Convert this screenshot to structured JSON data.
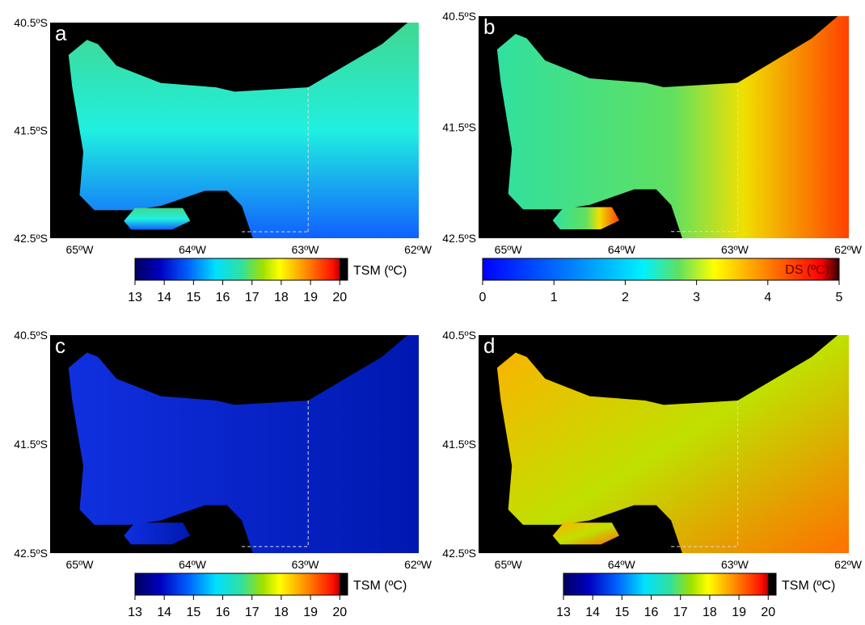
{
  "panels": [
    {
      "letter": "a",
      "lat_labels": [
        "40.5ºS",
        "41.5ºS",
        "42.5ºS"
      ],
      "lon_labels": [
        "65ºW",
        "64ºW",
        "63ºW",
        "62ºW"
      ],
      "colorbar": {
        "label": "TSM (ºC)",
        "ticks": [
          13,
          14,
          15,
          16,
          17,
          18,
          19,
          20
        ]
      }
    },
    {
      "letter": "b",
      "lat_labels": [
        "40.5ºS",
        "41.5ºS",
        "42.5ºS"
      ],
      "lon_labels": [
        "65ºW",
        "64ºW",
        "63ºW",
        "62ºW"
      ],
      "colorbar": {
        "label": "DS (ºC)",
        "ticks": [
          0,
          1,
          2,
          3,
          4,
          5
        ]
      }
    },
    {
      "letter": "c",
      "lat_labels": [
        "40.5ºS",
        "41.5ºS",
        "42.5ºS"
      ],
      "lon_labels": [
        "65ºW",
        "64ºW",
        "63ºW",
        "62ºW"
      ],
      "colorbar": {
        "label": "TSM (ºC)",
        "ticks": [
          13,
          14,
          15,
          16,
          17,
          18,
          19,
          20
        ]
      }
    },
    {
      "letter": "d",
      "lat_labels": [
        "40.5ºS",
        "41.5ºS",
        "42.5ºS"
      ],
      "lon_labels": [
        "65ºW",
        "64ºW",
        "63ºW",
        "62ºW"
      ],
      "colorbar": {
        "label": "TSM (ºC)",
        "ticks": [
          13,
          14,
          15,
          16,
          17,
          18,
          19,
          20
        ]
      }
    }
  ]
}
